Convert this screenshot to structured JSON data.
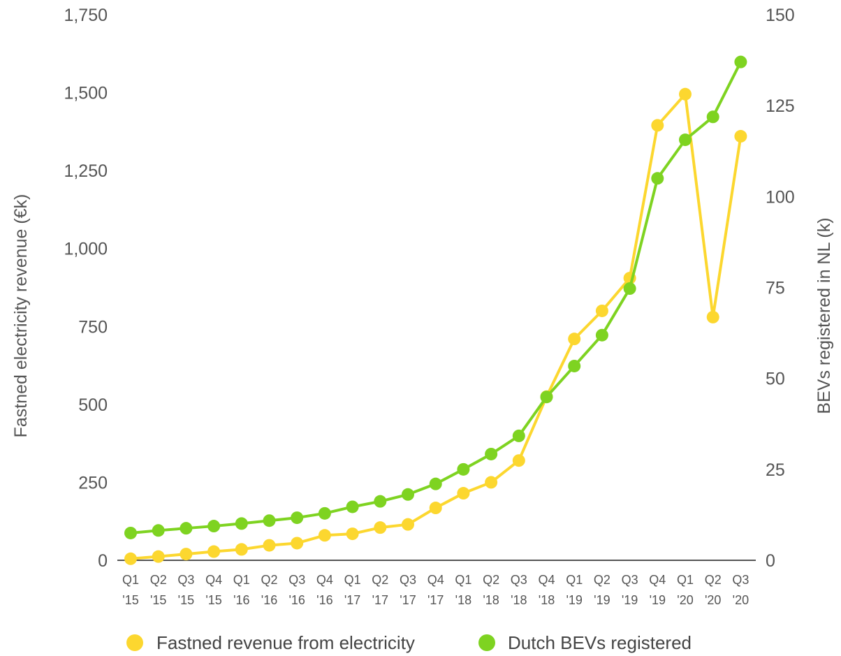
{
  "chart_data": {
    "type": "line",
    "categories": [
      [
        "Q1",
        "'15"
      ],
      [
        "Q2",
        "'15"
      ],
      [
        "Q3",
        "'15"
      ],
      [
        "Q4",
        "'15"
      ],
      [
        "Q1",
        "'16"
      ],
      [
        "Q2",
        "'16"
      ],
      [
        "Q3",
        "'16"
      ],
      [
        "Q4",
        "'16"
      ],
      [
        "Q1",
        "'17"
      ],
      [
        "Q2",
        "'17"
      ],
      [
        "Q3",
        "'17"
      ],
      [
        "Q4",
        "'17"
      ],
      [
        "Q1",
        "'18"
      ],
      [
        "Q2",
        "'18"
      ],
      [
        "Q3",
        "'18"
      ],
      [
        "Q4",
        "'18"
      ],
      [
        "Q1",
        "'19"
      ],
      [
        "Q2",
        "'19"
      ],
      [
        "Q3",
        "'19"
      ],
      [
        "Q4",
        "'19"
      ],
      [
        "Q1",
        "'20"
      ],
      [
        "Q2",
        "'20"
      ],
      [
        "Q3",
        "'20"
      ]
    ],
    "y_left": {
      "label": "Fastned electricity revenue (€k)",
      "range": [
        0,
        1750
      ],
      "ticks": [
        "0",
        "250",
        "500",
        "750",
        "1,000",
        "1,250",
        "1,500",
        "1,750"
      ],
      "tick_values": [
        0,
        250,
        500,
        750,
        1000,
        1250,
        1500,
        1750
      ]
    },
    "y_right": {
      "label": "BEVs registered in NL (k)",
      "range": [
        0,
        150
      ],
      "ticks": [
        "0",
        "25",
        "50",
        "75",
        "100",
        "125",
        "150"
      ],
      "tick_values": [
        0,
        25,
        50,
        75,
        100,
        125,
        150
      ]
    },
    "series": [
      {
        "name": "Fastned revenue from electricity",
        "axis": "left",
        "color": "#FCD72F",
        "values": [
          5,
          12,
          20,
          28,
          35,
          48,
          55,
          80,
          85,
          105,
          115,
          168,
          215,
          250,
          320,
          525,
          710,
          800,
          905,
          1395,
          1495,
          780,
          1360
        ]
      },
      {
        "name": "Dutch BEVs registered",
        "axis": "right",
        "color": "#7ED321",
        "values": [
          7.5,
          8.2,
          8.8,
          9.4,
          10.1,
          10.9,
          11.7,
          12.9,
          14.7,
          16.2,
          18.1,
          21.0,
          25.0,
          29.2,
          34.2,
          44.9,
          53.4,
          61.9,
          74.7,
          105.0,
          115.6,
          121.9,
          137.0
        ]
      }
    ],
    "legend_position": "bottom",
    "grid": false
  }
}
